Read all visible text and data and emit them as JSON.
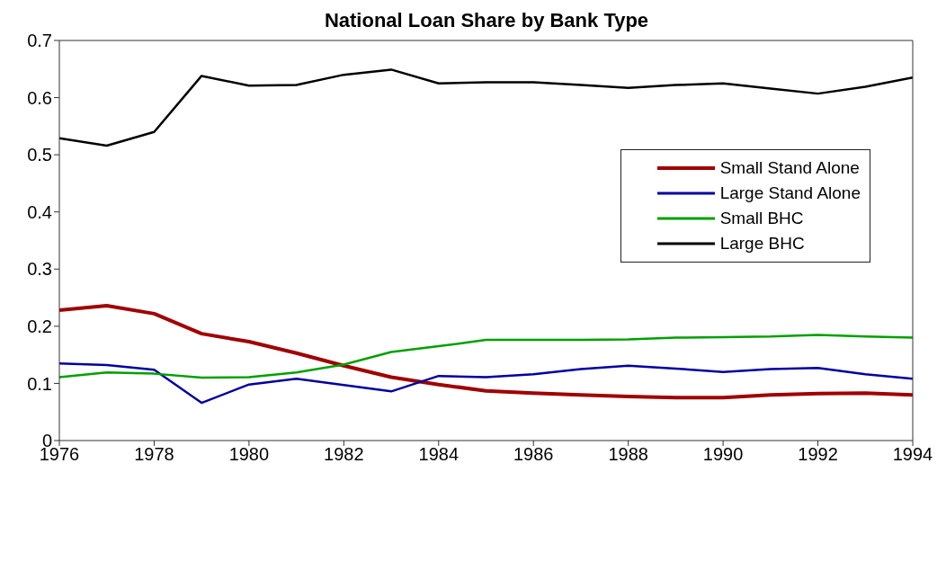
{
  "chart_data": {
    "type": "line",
    "title": "National Loan Share by Bank Type",
    "x": [
      1976,
      1977,
      1978,
      1979,
      1980,
      1981,
      1982,
      1983,
      1984,
      1985,
      1986,
      1987,
      1988,
      1989,
      1990,
      1991,
      1992,
      1993,
      1994
    ],
    "series": [
      {
        "name": "Small Stand Alone",
        "color": "#a00000",
        "values": [
          0.228,
          0.236,
          0.222,
          0.187,
          0.173,
          0.153,
          0.131,
          0.111,
          0.098,
          0.087,
          0.083,
          0.08,
          0.077,
          0.075,
          0.075,
          0.08,
          0.082,
          0.083,
          0.08
        ]
      },
      {
        "name": "Large Stand Alone",
        "color": "#0000a0",
        "values": [
          0.135,
          0.132,
          0.124,
          0.066,
          0.098,
          0.108,
          0.097,
          0.086,
          0.113,
          0.111,
          0.116,
          0.125,
          0.131,
          0.126,
          0.12,
          0.125,
          0.127,
          0.116,
          0.108
        ]
      },
      {
        "name": "Small BHC",
        "color": "#00a000",
        "values": [
          0.111,
          0.119,
          0.117,
          0.11,
          0.111,
          0.119,
          0.133,
          0.155,
          0.165,
          0.176,
          0.176,
          0.176,
          0.177,
          0.18,
          0.181,
          0.182,
          0.185,
          0.182,
          0.18
        ]
      },
      {
        "name": "Large BHC",
        "color": "#000000",
        "values": [
          0.529,
          0.516,
          0.54,
          0.638,
          0.621,
          0.622,
          0.64,
          0.649,
          0.625,
          0.627,
          0.627,
          0.622,
          0.617,
          0.622,
          0.625,
          0.616,
          0.607,
          0.619,
          0.635
        ]
      }
    ],
    "xlim": [
      1976,
      1994
    ],
    "xticks": [
      1976,
      1978,
      1980,
      1982,
      1984,
      1986,
      1988,
      1990,
      1992,
      1994
    ],
    "ylim": [
      0,
      0.7
    ],
    "yticks": [
      0,
      0.1,
      0.2,
      0.3,
      0.4,
      0.5,
      0.6,
      0.7
    ],
    "legend": "top right",
    "grid": false,
    "marker": "none",
    "line_style": "solid"
  }
}
